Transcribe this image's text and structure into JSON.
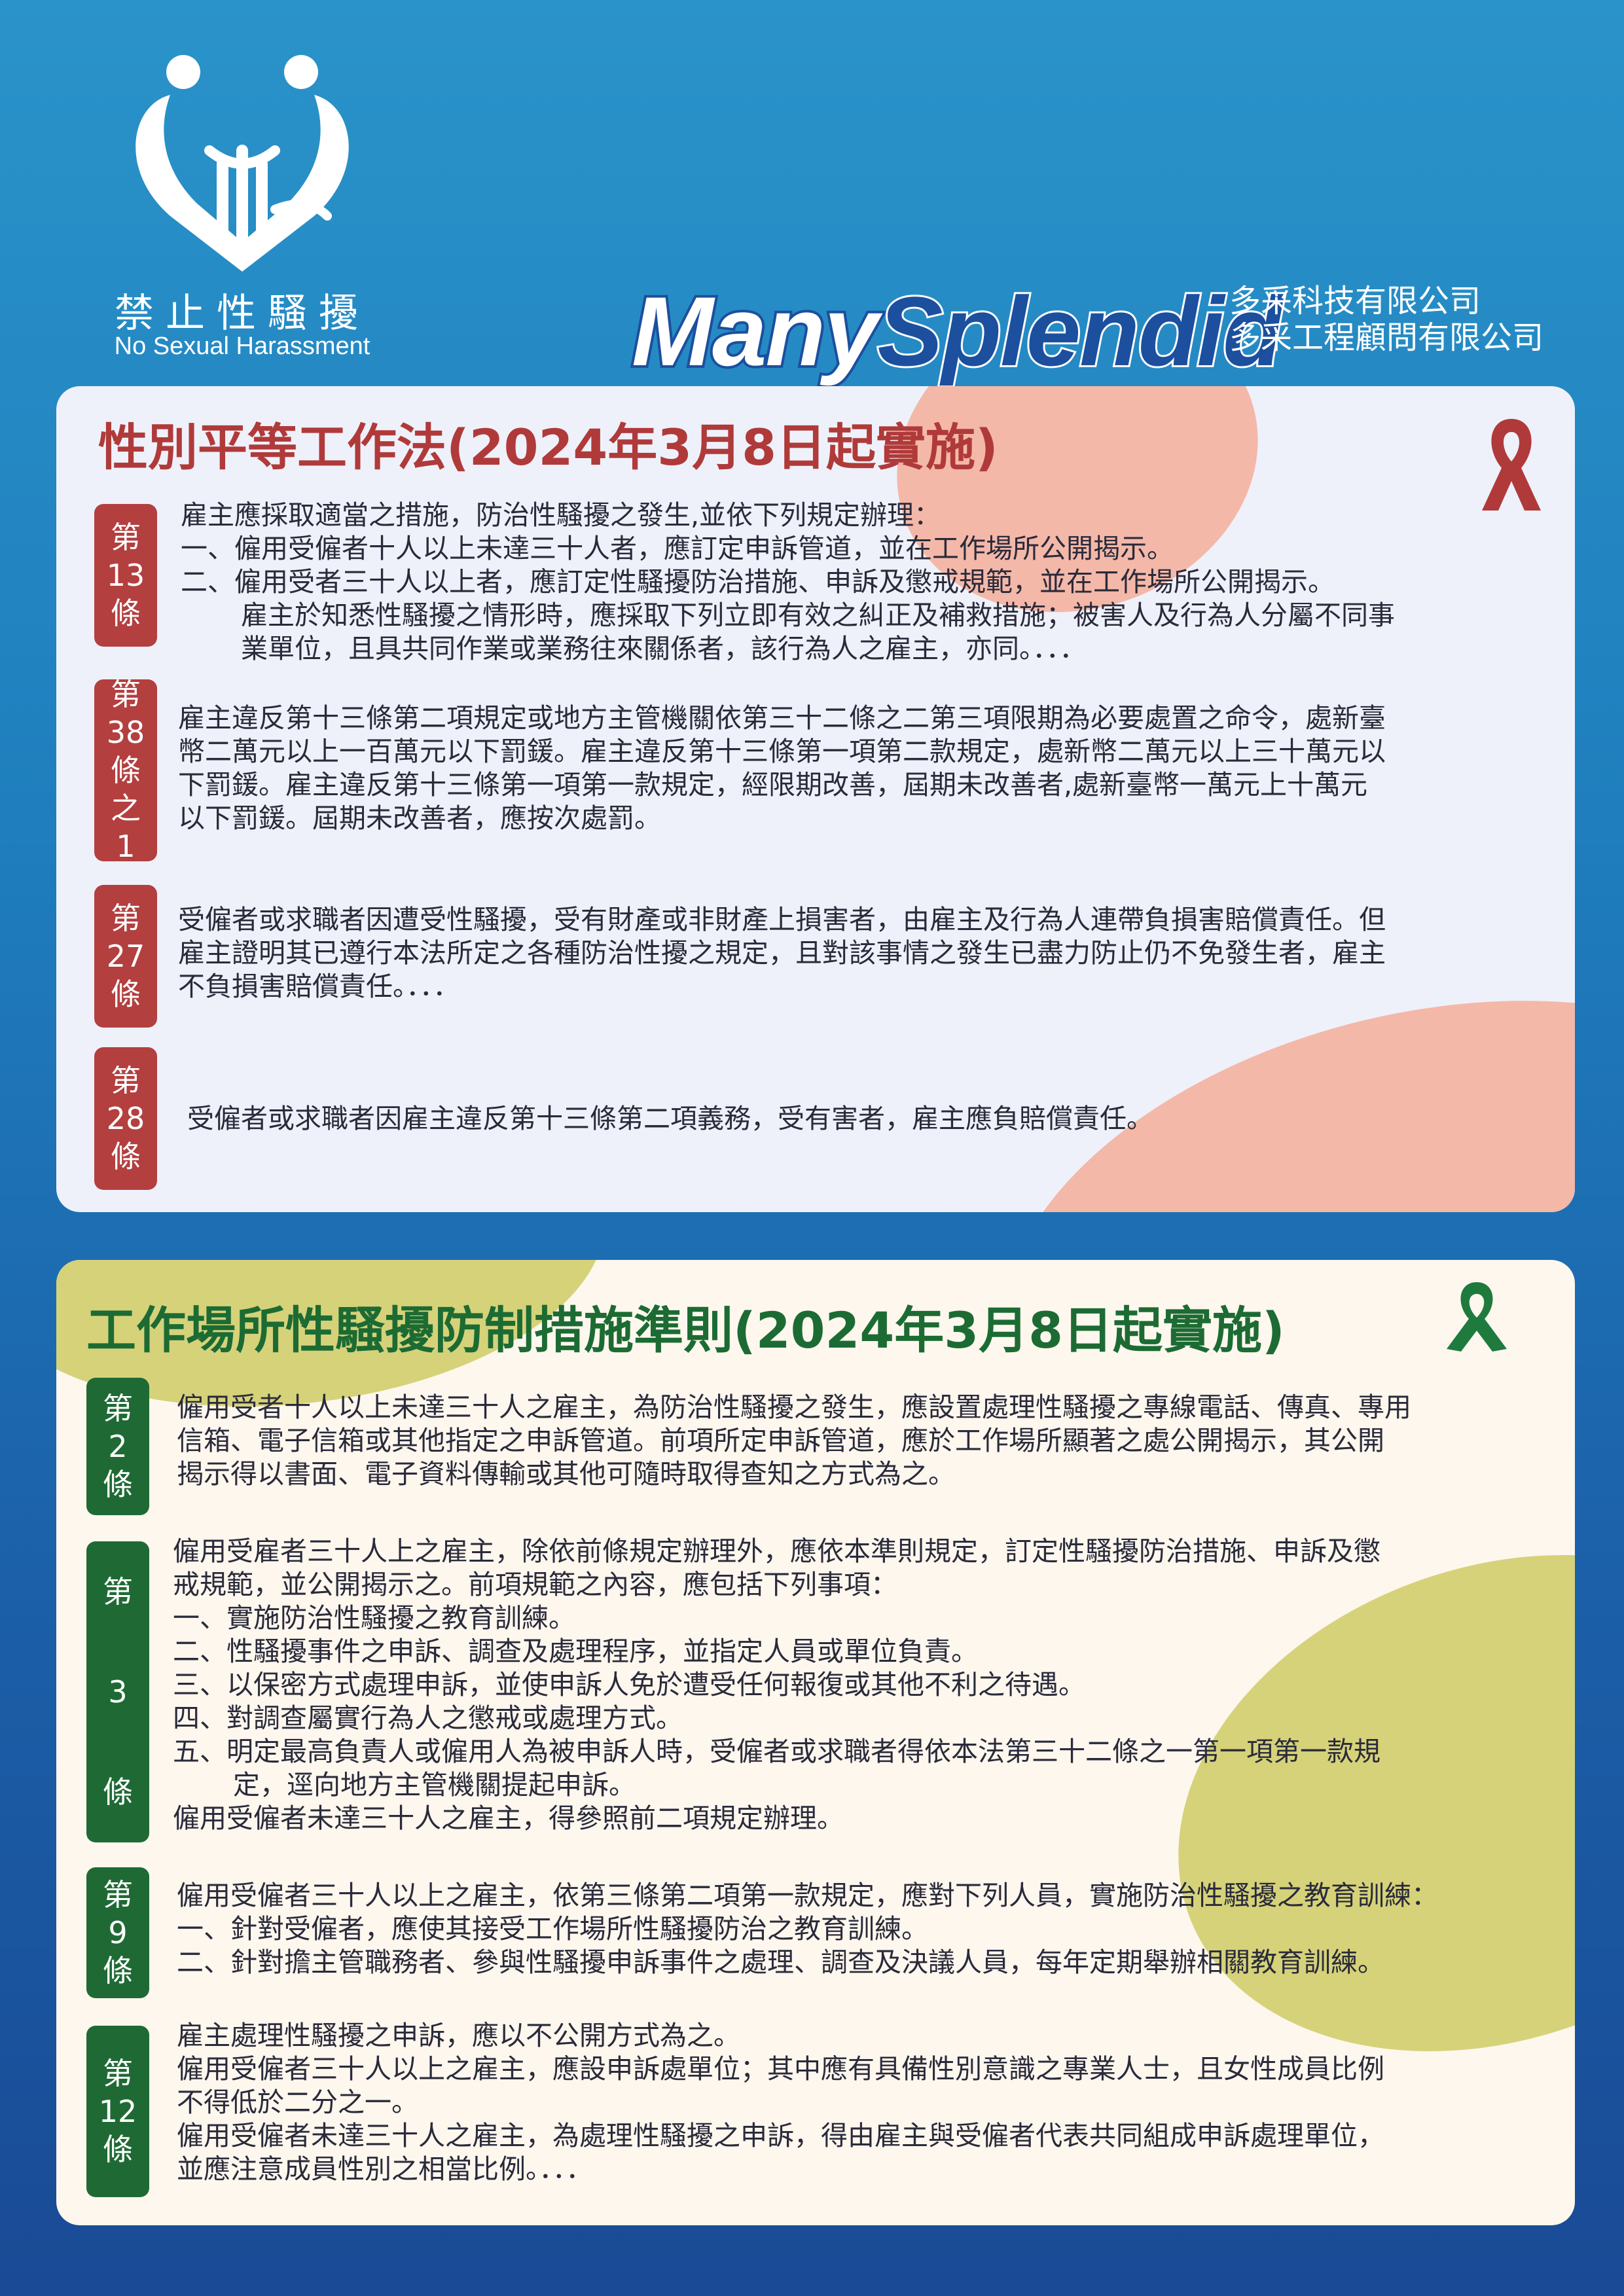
{
  "logo": {
    "zh": "禁止性騷擾",
    "en": "No Sexual Harassment",
    "icon": "heart-hands-icon"
  },
  "brand": {
    "part1": "Many",
    "part2": "Splendid"
  },
  "company": {
    "line1": "多采科技有限公司",
    "line2": "多采工程顧問有限公司"
  },
  "colors": {
    "red_accent": "#b33f3f",
    "green_accent": "#1f6a34",
    "bg_blue": "#1f7fbe"
  },
  "section1": {
    "title": "性別平等工作法(2024年3月8日起實施)",
    "icon": "awareness-ribbon-icon",
    "articles": [
      {
        "tag": [
          "第",
          "13",
          "條"
        ],
        "lines": [
          "雇主應採取適當之措施，防治性騷擾之發生,並依下列規定辦理：",
          "一、僱用受僱者十人以上未達三十人者，應訂定申訴管道，並在工作場所公開揭示。",
          "二、僱用受者三十人以上者，應訂定性騷擾防治措施、申訴及懲戒規範，並在工作場所公開揭示。",
          "雇主於知悉性騷擾之情形時，應採取下列立即有效之糾正及補救措施；被害人及行為人分屬不同事",
          "業單位，且具共同作業或業務往來關係者，該行為人之雇主，亦同。．．．"
        ]
      },
      {
        "tag": [
          "第",
          "38",
          "條",
          "之",
          "1"
        ],
        "lines": [
          "雇主違反第十三條第二項規定或地方主管機關依第三十二條之二第三項限期為必要處置之命令，處新臺",
          "幣二萬元以上一百萬元以下罰鍰。雇主違反第十三條第一項第二款規定，處新幣二萬元以上三十萬元以",
          "下罰鍰。雇主違反第十三條第一項第一款規定，經限期改善，屆期未改善者,處新臺幣一萬元上十萬元",
          "以下罰鍰。屆期未改善者，應按次處罰。"
        ]
      },
      {
        "tag": [
          "第",
          "27",
          "條"
        ],
        "lines": [
          "受僱者或求職者因遭受性騷擾，受有財產或非財產上損害者，由雇主及行為人連帶負損害賠償責任。但",
          "雇主證明其已遵行本法所定之各種防治性擾之規定，且對該事情之發生已盡力防止仍不免發生者，雇主",
          "不負損害賠償責任。．．．"
        ]
      },
      {
        "tag": [
          "第",
          "28",
          "條"
        ],
        "lines": [
          "受僱者或求職者因雇主違反第十三條第二項義務，受有害者，雇主應負賠償責任。"
        ]
      }
    ]
  },
  "section2": {
    "title": "工作場所性騷擾防制措施準則(2024年3月8日起實施)",
    "icon": "awareness-ribbon-icon",
    "articles": [
      {
        "tag": [
          "第",
          "2",
          "條"
        ],
        "lines": [
          "僱用受者十人以上未達三十人之雇主，為防治性騷擾之發生，應設置處理性騷擾之專線電話、傳真、專用",
          "信箱、電子信箱或其他指定之申訴管道。前項所定申訴管道，應於工作場所顯著之處公開揭示，其公開",
          "揭示得以書面、電子資料傳輸或其他可隨時取得查知之方式為之。"
        ]
      },
      {
        "tag": [
          "第",
          "3",
          "條"
        ],
        "lines": [
          "僱用受雇者三十人上之雇主，除依前條規定辦理外，應依本準則規定，訂定性騷擾防治措施、申訴及懲",
          "戒規範，並公開揭示之。前項規範之內容，應包括下列事項：",
          "一、實施防治性騷擾之教育訓練。",
          "二、性騷擾事件之申訴、調查及處理程序，並指定人員或單位負責。",
          "三、以保密方式處理申訴，並使申訴人免於遭受任何報復或其他不利之待遇。",
          "四、對調查屬實行為人之懲戒或處理方式。",
          "五、明定最高負責人或僱用人為被申訴人時，受僱者或求職者得依本法第三十二條之一第一項第一款規",
          "定，逕向地方主管機關提起申訴。",
          "僱用受僱者未達三十人之雇主，得參照前二項規定辦理。"
        ]
      },
      {
        "tag": [
          "第",
          "9",
          "條"
        ],
        "lines": [
          "僱用受僱者三十人以上之雇主，依第三條第二項第一款規定，應對下列人員，實施防治性騷擾之教育訓練：",
          "一、針對受僱者，應使其接受工作場所性騷擾防治之教育訓練。",
          "二、針對擔主管職務者、參與性騷擾申訴事件之處理、調查及決議人員，每年定期舉辦相關教育訓練。"
        ]
      },
      {
        "tag": [
          "第",
          "12",
          "條"
        ],
        "lines": [
          "雇主處理性騷擾之申訴，應以不公開方式為之。",
          "僱用受僱者三十人以上之雇主，應設申訴處單位；其中應有具備性別意識之專業人士，且女性成員比例",
          "不得低於二分之一。",
          "僱用受僱者未達三十人之雇主，為處理性騷擾之申訴，得由雇主與受僱者代表共同組成申訴處理單位，",
          "並應注意成員性別之相當比例。．．．"
        ]
      }
    ]
  }
}
